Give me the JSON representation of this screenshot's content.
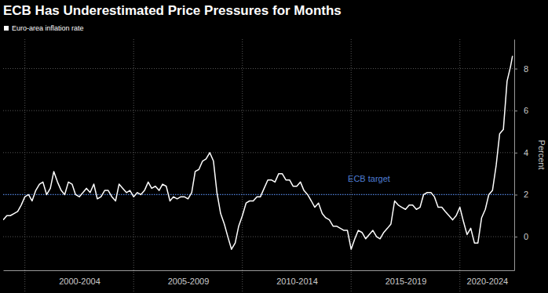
{
  "chart_data": {
    "type": "line",
    "title": "ECB Has Underestimated Price Pressures for Months",
    "y_label": "Percent",
    "legend": "top-left",
    "grid": true,
    "xlim": [
      1999,
      2022.5
    ],
    "xticks": [
      {
        "value": 2002.5,
        "label": "2000-2004"
      },
      {
        "value": 2007.5,
        "label": "2005-2009"
      },
      {
        "value": 2012.5,
        "label": "2010-2014"
      },
      {
        "value": 2017.5,
        "label": "2015-2019"
      },
      {
        "value": 2021.25,
        "label": "2020-2024"
      }
    ],
    "x_dividers": [
      2000,
      2005,
      2010,
      2015,
      2020
    ],
    "ylim": [
      -1.6,
      9.4
    ],
    "yticks": [
      0,
      2,
      4,
      6,
      8
    ],
    "reference_line": {
      "value": 2,
      "label": "ECB target",
      "color": "#4f7fd6"
    },
    "x": [
      1999,
      1999.17,
      1999.33,
      1999.5,
      1999.67,
      1999.83,
      2000,
      2000.17,
      2000.33,
      2000.5,
      2000.67,
      2000.83,
      2001,
      2001.17,
      2001.33,
      2001.5,
      2001.67,
      2001.83,
      2002,
      2002.17,
      2002.33,
      2002.5,
      2002.67,
      2002.83,
      2003,
      2003.17,
      2003.33,
      2003.5,
      2003.67,
      2003.83,
      2004,
      2004.17,
      2004.33,
      2004.5,
      2004.67,
      2004.83,
      2005,
      2005.17,
      2005.33,
      2005.5,
      2005.67,
      2005.83,
      2006,
      2006.17,
      2006.33,
      2006.5,
      2006.67,
      2006.83,
      2007,
      2007.17,
      2007.33,
      2007.5,
      2007.67,
      2007.83,
      2008,
      2008.17,
      2008.33,
      2008.5,
      2008.67,
      2008.83,
      2009,
      2009.17,
      2009.33,
      2009.5,
      2009.67,
      2009.83,
      2010,
      2010.17,
      2010.33,
      2010.5,
      2010.67,
      2010.83,
      2011,
      2011.17,
      2011.33,
      2011.5,
      2011.67,
      2011.83,
      2012,
      2012.17,
      2012.33,
      2012.5,
      2012.67,
      2012.83,
      2013,
      2013.17,
      2013.33,
      2013.5,
      2013.67,
      2013.83,
      2014,
      2014.17,
      2014.33,
      2014.5,
      2014.67,
      2014.83,
      2015,
      2015.17,
      2015.33,
      2015.5,
      2015.67,
      2015.83,
      2016,
      2016.17,
      2016.33,
      2016.5,
      2016.67,
      2016.83,
      2017,
      2017.17,
      2017.33,
      2017.5,
      2017.67,
      2017.83,
      2018,
      2018.17,
      2018.33,
      2018.5,
      2018.67,
      2018.83,
      2019,
      2019.17,
      2019.33,
      2019.5,
      2019.67,
      2019.83,
      2020,
      2020.17,
      2020.33,
      2020.5,
      2020.67,
      2020.83,
      2021,
      2021.17,
      2021.33,
      2021.5,
      2021.67,
      2021.83,
      2022,
      2022.17,
      2022.33,
      2022.42
    ],
    "series": [
      {
        "name": "Euro-area inflation rate",
        "color": "#ffffff",
        "line_style": "solid",
        "values": [
          0.8,
          1.0,
          1.0,
          1.1,
          1.2,
          1.5,
          1.9,
          2.0,
          1.7,
          2.2,
          2.5,
          2.6,
          2.0,
          2.3,
          3.1,
          2.6,
          2.2,
          2.0,
          2.6,
          2.5,
          2.0,
          1.9,
          2.1,
          2.3,
          2.1,
          2.5,
          1.8,
          1.9,
          2.2,
          2.2,
          1.9,
          1.7,
          2.5,
          2.3,
          2.1,
          2.2,
          1.9,
          2.1,
          2.0,
          2.2,
          2.6,
          2.3,
          2.4,
          2.2,
          2.5,
          2.4,
          1.7,
          1.9,
          1.8,
          1.9,
          1.9,
          1.8,
          2.1,
          3.1,
          3.2,
          3.6,
          3.7,
          4.0,
          3.6,
          2.1,
          1.1,
          0.6,
          0.0,
          -0.6,
          -0.3,
          0.5,
          1.0,
          1.6,
          1.7,
          1.7,
          1.9,
          1.9,
          2.3,
          2.7,
          2.7,
          2.6,
          3.0,
          3.0,
          2.7,
          2.7,
          2.4,
          2.4,
          2.6,
          2.2,
          2.0,
          1.7,
          1.4,
          1.6,
          1.1,
          0.9,
          0.8,
          0.5,
          0.5,
          0.4,
          0.3,
          0.3,
          -0.6,
          -0.1,
          0.3,
          0.2,
          -0.1,
          0.1,
          0.3,
          0.0,
          -0.1,
          0.2,
          0.4,
          0.6,
          1.7,
          1.5,
          1.4,
          1.3,
          1.5,
          1.5,
          1.3,
          1.4,
          2.0,
          2.1,
          2.1,
          1.9,
          1.4,
          1.4,
          1.2,
          1.0,
          0.8,
          1.0,
          1.4,
          0.7,
          0.1,
          0.4,
          -0.3,
          -0.3,
          0.9,
          1.3,
          2.0,
          2.2,
          3.4,
          4.9,
          5.1,
          7.4,
          8.1,
          8.6
        ]
      }
    ]
  }
}
